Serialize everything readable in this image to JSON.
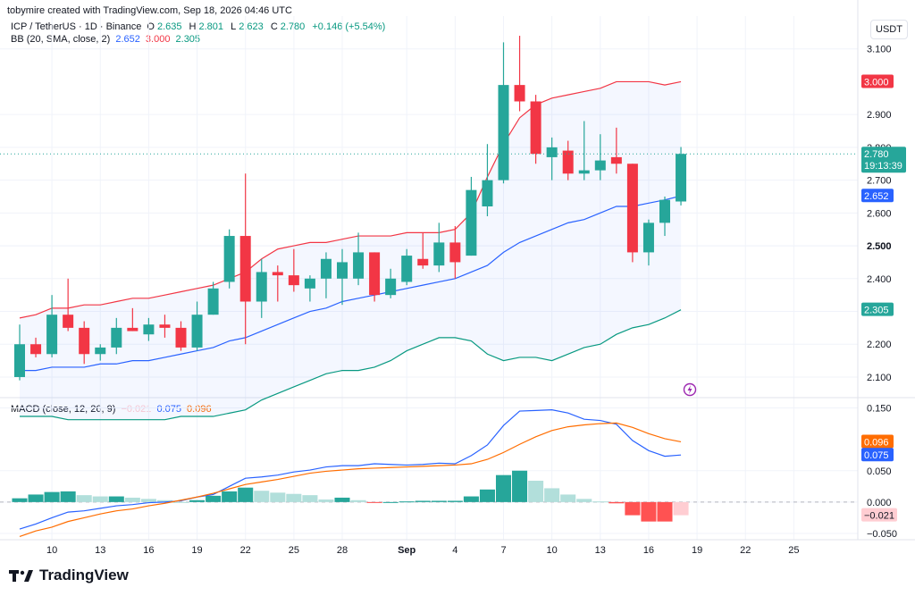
{
  "header": {
    "creator": "tobymire created with TradingView.com, Sep 18, 2026 04:46 UTC"
  },
  "legend": {
    "symbol": "ICP / TetherUS · 1D · Binance",
    "o_label": "O",
    "o": "2.635",
    "h_label": "H",
    "h": "2.801",
    "l_label": "L",
    "l": "2.623",
    "c_label": "C",
    "c": "2.780",
    "change": "+0.146 (+5.54%)",
    "bb_label": "BB (20, SMA, close, 2)",
    "bb_basis": "2.652",
    "bb_upper": "3.000",
    "bb_lower": "2.305",
    "macd_label": "MACD (close, 12, 26, 9)",
    "macd_hist": "−0.021",
    "macd_line": "0.075",
    "macd_signal": "0.096"
  },
  "currency_button": "USDT",
  "brand": "TradingView",
  "colors": {
    "up": "#26a69a",
    "down": "#f23645",
    "bb_basis": "#2962ff",
    "bb_upper": "#f23645",
    "bb_lower": "#089981",
    "macd": "#2962ff",
    "signal": "#ff6d00",
    "hist_up_strong": "#26a69a",
    "hist_up_weak": "#b2dfdb",
    "hist_down_strong": "#ff5252",
    "hist_down_weak": "#ffcdd2",
    "band_fill": "#2962ff"
  },
  "axis": {
    "price_ticks": [
      "3.100",
      "2.900",
      "2.800",
      "2.700",
      "2.600",
      "2.500",
      "2.400",
      "2.200",
      "2.100"
    ],
    "macd_ticks": [
      "0.150",
      "0.050",
      "0.000",
      "−0.050"
    ],
    "x_ticks": [
      "10",
      "13",
      "16",
      "19",
      "22",
      "25",
      "28",
      "Sep",
      "4",
      "7",
      "10",
      "13",
      "16",
      "19",
      "22",
      "25"
    ],
    "price_labels": {
      "upper": "3.000",
      "last": "2.780",
      "countdown": "19:13:39",
      "basis": "2.652",
      "lower": "2.305",
      "marked": "2.500"
    },
    "macd_labels": {
      "signal": "0.096",
      "macd": "0.075",
      "hist": "−0.021"
    }
  },
  "chart_data": {
    "type": "candlestick",
    "dates": [
      "Aug 8",
      "Aug 9",
      "Aug 10",
      "Aug 11",
      "Aug 12",
      "Aug 13",
      "Aug 14",
      "Aug 15",
      "Aug 16",
      "Aug 17",
      "Aug 18",
      "Aug 19",
      "Aug 20",
      "Aug 21",
      "Aug 22",
      "Aug 23",
      "Aug 24",
      "Aug 25",
      "Aug 26",
      "Aug 27",
      "Aug 28",
      "Aug 29",
      "Aug 30",
      "Aug 31",
      "Sep 1",
      "Sep 2",
      "Sep 3",
      "Sep 4",
      "Sep 5",
      "Sep 6",
      "Sep 7",
      "Sep 8",
      "Sep 9",
      "Sep 10",
      "Sep 11",
      "Sep 12",
      "Sep 13",
      "Sep 14",
      "Sep 15",
      "Sep 16",
      "Sep 17",
      "Sep 18"
    ],
    "ohlc": [
      [
        2.1,
        2.26,
        2.09,
        2.2
      ],
      [
        2.2,
        2.22,
        2.16,
        2.17
      ],
      [
        2.17,
        2.35,
        2.16,
        2.29
      ],
      [
        2.29,
        2.4,
        2.24,
        2.25
      ],
      [
        2.25,
        2.27,
        2.14,
        2.17
      ],
      [
        2.17,
        2.2,
        2.15,
        2.19
      ],
      [
        2.19,
        2.28,
        2.17,
        2.25
      ],
      [
        2.25,
        2.31,
        2.24,
        2.24
      ],
      [
        2.23,
        2.28,
        2.21,
        2.26
      ],
      [
        2.26,
        2.29,
        2.22,
        2.25
      ],
      [
        2.25,
        2.27,
        2.18,
        2.19
      ],
      [
        2.19,
        2.33,
        2.18,
        2.29
      ],
      [
        2.29,
        2.39,
        2.29,
        2.37
      ],
      [
        2.39,
        2.55,
        2.37,
        2.53
      ],
      [
        2.53,
        2.72,
        2.2,
        2.33
      ],
      [
        2.33,
        2.46,
        2.28,
        2.42
      ],
      [
        2.42,
        2.44,
        2.33,
        2.41
      ],
      [
        2.41,
        2.49,
        2.36,
        2.38
      ],
      [
        2.37,
        2.41,
        2.33,
        2.4
      ],
      [
        2.4,
        2.48,
        2.34,
        2.46
      ],
      [
        2.4,
        2.49,
        2.32,
        2.45
      ],
      [
        2.4,
        2.54,
        2.38,
        2.48
      ],
      [
        2.48,
        2.48,
        2.33,
        2.35
      ],
      [
        2.35,
        2.43,
        2.34,
        2.4
      ],
      [
        2.39,
        2.49,
        2.38,
        2.47
      ],
      [
        2.46,
        2.54,
        2.43,
        2.44
      ],
      [
        2.44,
        2.57,
        2.42,
        2.51
      ],
      [
        2.51,
        2.56,
        2.4,
        2.45
      ],
      [
        2.47,
        2.71,
        2.47,
        2.67
      ],
      [
        2.62,
        2.81,
        2.59,
        2.7
      ],
      [
        2.7,
        3.12,
        2.69,
        2.99
      ],
      [
        2.99,
        3.14,
        2.91,
        2.94
      ],
      [
        2.94,
        2.96,
        2.75,
        2.78
      ],
      [
        2.77,
        2.83,
        2.7,
        2.8
      ],
      [
        2.79,
        2.82,
        2.7,
        2.72
      ],
      [
        2.72,
        2.88,
        2.7,
        2.73
      ],
      [
        2.73,
        2.84,
        2.7,
        2.76
      ],
      [
        2.77,
        2.86,
        2.72,
        2.75
      ],
      [
        2.75,
        2.75,
        2.45,
        2.48
      ],
      [
        2.48,
        2.58,
        2.44,
        2.57
      ],
      [
        2.57,
        2.65,
        2.53,
        2.64
      ],
      [
        2.635,
        2.801,
        2.623,
        2.78
      ]
    ],
    "bb_upper": [
      2.28,
      2.29,
      2.31,
      2.31,
      2.32,
      2.32,
      2.33,
      2.34,
      2.34,
      2.35,
      2.36,
      2.37,
      2.38,
      2.4,
      2.42,
      2.46,
      2.49,
      2.5,
      2.51,
      2.51,
      2.52,
      2.53,
      2.53,
      2.53,
      2.54,
      2.54,
      2.54,
      2.55,
      2.6,
      2.71,
      2.81,
      2.89,
      2.93,
      2.95,
      2.96,
      2.97,
      2.98,
      3.0,
      3.0,
      3.0,
      2.99,
      3.0
    ],
    "bb_basis": [
      2.12,
      2.12,
      2.13,
      2.13,
      2.13,
      2.14,
      2.14,
      2.15,
      2.15,
      2.16,
      2.17,
      2.18,
      2.19,
      2.21,
      2.22,
      2.24,
      2.26,
      2.28,
      2.3,
      2.31,
      2.33,
      2.34,
      2.35,
      2.36,
      2.37,
      2.38,
      2.39,
      2.4,
      2.42,
      2.44,
      2.48,
      2.51,
      2.53,
      2.55,
      2.57,
      2.58,
      2.6,
      2.62,
      2.62,
      2.63,
      2.64,
      2.652
    ],
    "bb_lower": [
      1.98,
      1.98,
      1.98,
      1.97,
      1.97,
      1.97,
      1.97,
      1.97,
      1.97,
      1.97,
      1.98,
      1.98,
      1.98,
      1.99,
      2.0,
      2.03,
      2.05,
      2.07,
      2.09,
      2.11,
      2.12,
      2.12,
      2.13,
      2.15,
      2.18,
      2.2,
      2.22,
      2.22,
      2.21,
      2.17,
      2.15,
      2.16,
      2.16,
      2.15,
      2.17,
      2.19,
      2.2,
      2.23,
      2.25,
      2.26,
      2.28,
      2.305
    ],
    "macd": [
      -0.043,
      -0.035,
      -0.025,
      -0.016,
      -0.014,
      -0.01,
      -0.006,
      -0.004,
      -0.001,
      0.0,
      0.002,
      0.008,
      0.012,
      0.025,
      0.038,
      0.04,
      0.043,
      0.048,
      0.051,
      0.056,
      0.058,
      0.058,
      0.061,
      0.06,
      0.059,
      0.06,
      0.062,
      0.061,
      0.074,
      0.091,
      0.122,
      0.145,
      0.146,
      0.147,
      0.142,
      0.132,
      0.13,
      0.124,
      0.098,
      0.082,
      0.073,
      0.075
    ],
    "signal": [
      -0.055,
      -0.046,
      -0.04,
      -0.031,
      -0.025,
      -0.019,
      -0.014,
      -0.011,
      -0.006,
      -0.002,
      0.003,
      0.008,
      0.014,
      0.021,
      0.028,
      0.032,
      0.036,
      0.041,
      0.046,
      0.049,
      0.051,
      0.053,
      0.054,
      0.055,
      0.056,
      0.057,
      0.058,
      0.059,
      0.061,
      0.068,
      0.079,
      0.092,
      0.104,
      0.114,
      0.12,
      0.123,
      0.125,
      0.126,
      0.119,
      0.109,
      0.101,
      0.096
    ],
    "histogram": [
      0.006,
      0.012,
      0.016,
      0.017,
      0.011,
      0.009,
      0.009,
      0.007,
      0.005,
      0.003,
      0.0,
      0.003,
      0.01,
      0.017,
      0.023,
      0.018,
      0.015,
      0.013,
      0.011,
      0.004,
      0.007,
      0.003,
      -0.001,
      0.0,
      0.001,
      0.002,
      0.002,
      0.002,
      0.009,
      0.02,
      0.043,
      0.05,
      0.034,
      0.022,
      0.012,
      0.005,
      0.001,
      -0.002,
      -0.021,
      -0.031,
      -0.031,
      -0.021
    ],
    "price_range": [
      2.04,
      3.2
    ],
    "macd_range": [
      -0.06,
      0.165
    ]
  }
}
